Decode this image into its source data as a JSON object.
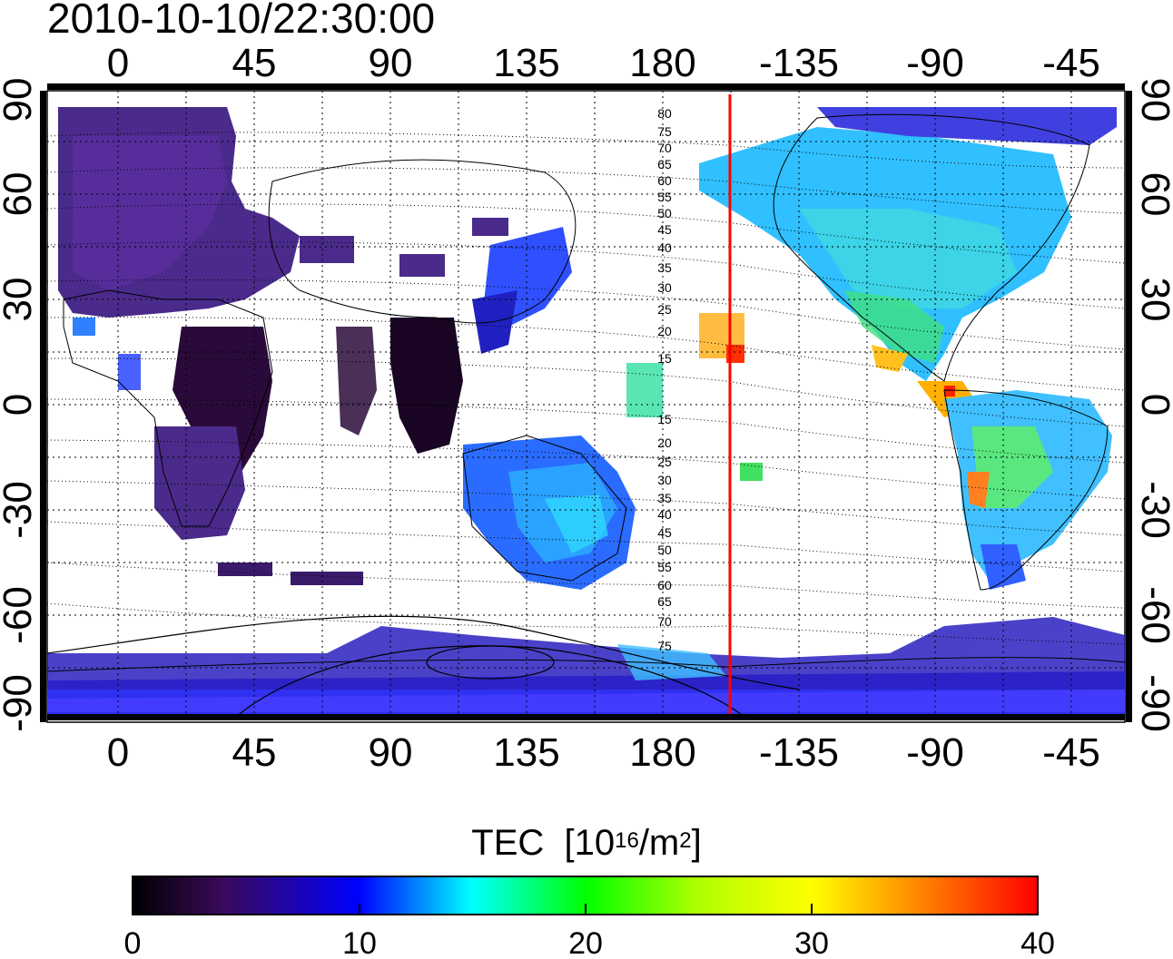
{
  "title": "2010-10-10/22:30:00",
  "map": {
    "top_lon_ticks": [
      "0",
      "45",
      "90",
      "135",
      "180",
      "-135",
      "-90",
      "-45"
    ],
    "bottom_lon_ticks": [
      "0",
      "45",
      "90",
      "135",
      "180",
      "-135",
      "-90",
      "-45"
    ],
    "left_lat_ticks": [
      "90",
      "60",
      "30",
      "0",
      "-30",
      "-60",
      "-90"
    ],
    "right_lat_ticks": [
      "90",
      "60",
      "30",
      "0",
      "-30",
      "-60",
      "-90"
    ],
    "contour_labels_north": [
      "80",
      "75",
      "70",
      "65",
      "60",
      "55",
      "50",
      "45",
      "40",
      "35",
      "30",
      "25",
      "20",
      "15"
    ],
    "contour_labels_south": [
      "15",
      "20",
      "25",
      "30",
      "35",
      "40",
      "45",
      "50",
      "55",
      "60",
      "65",
      "70",
      "75"
    ],
    "meridian_line_color": "#ff0000"
  },
  "colorbar": {
    "label": "TEC",
    "unit_prefix": "[10",
    "unit_exp": "16",
    "unit_mid": "/m",
    "unit_exp2": "2",
    "unit_suffix": "]",
    "min": 0,
    "max": 40,
    "tick_labels": [
      "0",
      "10",
      "20",
      "30",
      "40"
    ]
  }
}
